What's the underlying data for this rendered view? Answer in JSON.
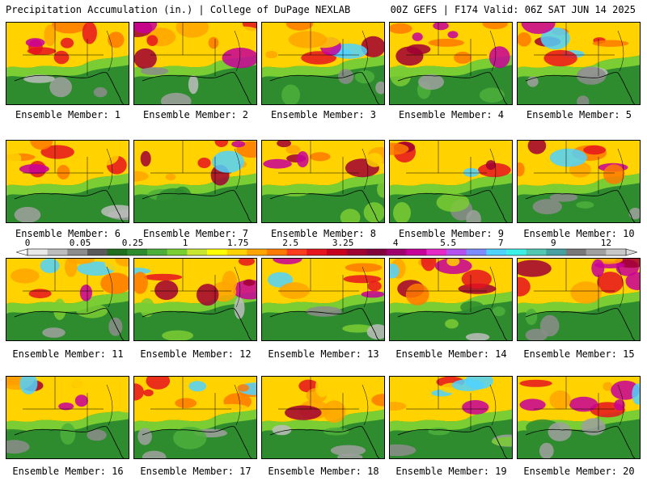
{
  "header": {
    "left": "Precipitation Accumulation (in.) | College of DuPage NEXLAB",
    "right": "00Z GEFS | F174 Valid: 06Z SAT JUN 14 2025"
  },
  "members": [
    "Ensemble Member: 1",
    "Ensemble Member: 2",
    "Ensemble Member: 3",
    "Ensemble Member: 4",
    "Ensemble Member: 5",
    "Ensemble Member: 6",
    "Ensemble Member: 7",
    "Ensemble Member: 8",
    "Ensemble Member: 9",
    "Ensemble Member: 10",
    "Ensemble Member: 11",
    "Ensemble Member: 12",
    "Ensemble Member: 13",
    "Ensemble Member: 14",
    "Ensemble Member: 15",
    "Ensemble Member: 16",
    "Ensemble Member: 17",
    "Ensemble Member: 18",
    "Ensemble Member: 19",
    "Ensemble Member: 20"
  ],
  "colorbar": {
    "ticks": [
      "0",
      "0.05",
      "0.25",
      "1",
      "1.75",
      "2.5",
      "3.25",
      "4",
      "5.5",
      "7",
      "9",
      "12"
    ],
    "colors": [
      "#e8e8e8",
      "#bdbdbd",
      "#8c8c8c",
      "#5a5a5a",
      "#1f6f1f",
      "#2e8b2e",
      "#4caf3a",
      "#7acd32",
      "#c8e632",
      "#ffff00",
      "#ffd200",
      "#ffa500",
      "#ff7a00",
      "#ff3c1e",
      "#e6141e",
      "#c8001e",
      "#a00032",
      "#82003c",
      "#a0006e",
      "#c8009a",
      "#e628c8",
      "#b450f0",
      "#7a8cff",
      "#50d2ff",
      "#3cf0e6",
      "#50c8b4",
      "#46a0a0",
      "#787878",
      "#a0a0a0",
      "#c8c8c8"
    ]
  }
}
